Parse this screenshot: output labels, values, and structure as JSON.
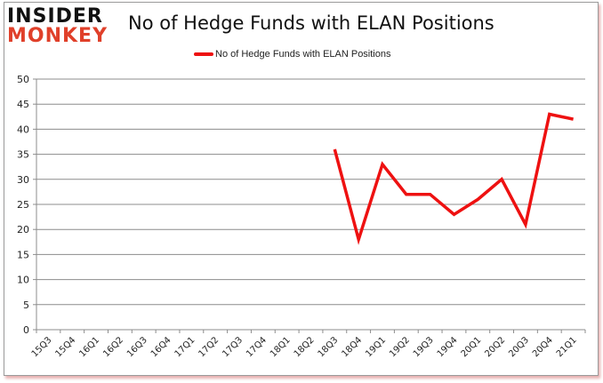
{
  "logo": {
    "line1": "INSIDER",
    "line2": "MONKEY"
  },
  "header": {
    "title": "No of Hedge Funds with ELAN Positions"
  },
  "legend": {
    "label": "No of Hedge Funds with ELAN Positions",
    "color": "#ee1111"
  },
  "chart_data": {
    "type": "line",
    "title": "No of Hedge Funds with ELAN Positions",
    "xlabel": "",
    "ylabel": "",
    "ylim": [
      0,
      50
    ],
    "yticks": [
      0,
      5,
      10,
      15,
      20,
      25,
      30,
      35,
      40,
      45,
      50
    ],
    "grid": true,
    "legend_position": "top",
    "categories": [
      "15Q3",
      "15Q4",
      "16Q1",
      "16Q2",
      "16Q3",
      "16Q4",
      "17Q1",
      "17Q2",
      "17Q3",
      "17Q4",
      "18Q1",
      "18Q2",
      "18Q3",
      "18Q4",
      "19Q1",
      "19Q2",
      "19Q3",
      "19Q4",
      "20Q1",
      "20Q2",
      "20Q3",
      "20Q4",
      "21Q1"
    ],
    "series": [
      {
        "name": "No of Hedge Funds with ELAN Positions",
        "color": "#ee1111",
        "values": [
          null,
          null,
          null,
          null,
          null,
          null,
          null,
          null,
          null,
          null,
          null,
          null,
          36,
          18,
          33,
          27,
          27,
          23,
          26,
          30,
          21,
          43,
          42
        ]
      }
    ]
  }
}
